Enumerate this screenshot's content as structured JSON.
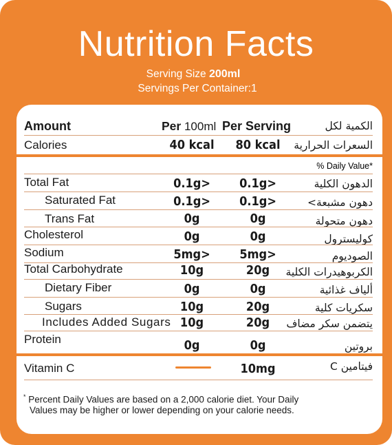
{
  "title": "Nutrition Facts",
  "serving_size": {
    "label": "Serving Size",
    "value": "200ml"
  },
  "servings_per_container": {
    "label": "Servings Per Container:",
    "value": "1"
  },
  "header": {
    "amount": "Amount",
    "per_label": "Per",
    "per_unit": "100ml",
    "per_serving": "Per Serving",
    "arabic": "الكمية لكل"
  },
  "calories": {
    "label": "Calories",
    "per100": "40 kcal",
    "serving": "80 kcal",
    "arabic": "السعرات الحرارية"
  },
  "daily_value_note": "% Daily Value*",
  "nutrients": [
    {
      "label": "Total Fat",
      "per100": "0.1g>",
      "serving": "0.1g>",
      "arabic": "الدهون الكلية"
    },
    {
      "label": "Saturated Fat",
      "per100": "0.1g>",
      "serving": "0.1g>",
      "arabic": "دهون مشبعة>"
    },
    {
      "label": "Trans Fat",
      "per100": "0g",
      "serving": "0g",
      "arabic": "دهون متحولة"
    },
    {
      "label": "Cholesterol",
      "per100": "0g",
      "serving": "0g",
      "arabic": "كوليسترول"
    },
    {
      "label": "Sodium",
      "per100": "5mg>",
      "serving": "5mg>",
      "arabic": "الصوديوم"
    },
    {
      "label": "Total Carbohydrate",
      "per100": "10g",
      "serving": "20g",
      "arabic": "الكربوهيدرات الكلية"
    },
    {
      "label": "Dietary Fiber",
      "per100": "0g",
      "serving": "0g",
      "arabic": "ألياف غذائية"
    },
    {
      "label": "Sugars",
      "per100": "10g",
      "serving": "20g",
      "arabic": "سكريات كلية"
    },
    {
      "label": "Includes Added Sugars",
      "per100": "10g",
      "serving": "20g",
      "arabic": "يتضمن سكر مضاف"
    },
    {
      "label": "Protein",
      "per100": "0g",
      "serving": "0g",
      "arabic": "بروتين"
    }
  ],
  "vitamin_c": {
    "label": "Vitamin C",
    "serving": "10mg",
    "arabic": "فيتامين C"
  },
  "footnote": {
    "star": "*",
    "line1": "Percent Daily Values are based on a 2,000 calorie diet. Your Daily",
    "line2": "Values may be higher or lower depending on your calorie needs."
  },
  "colors": {
    "frame": "#ee8530",
    "panel": "#ffffff",
    "text": "#1a1a1a"
  }
}
